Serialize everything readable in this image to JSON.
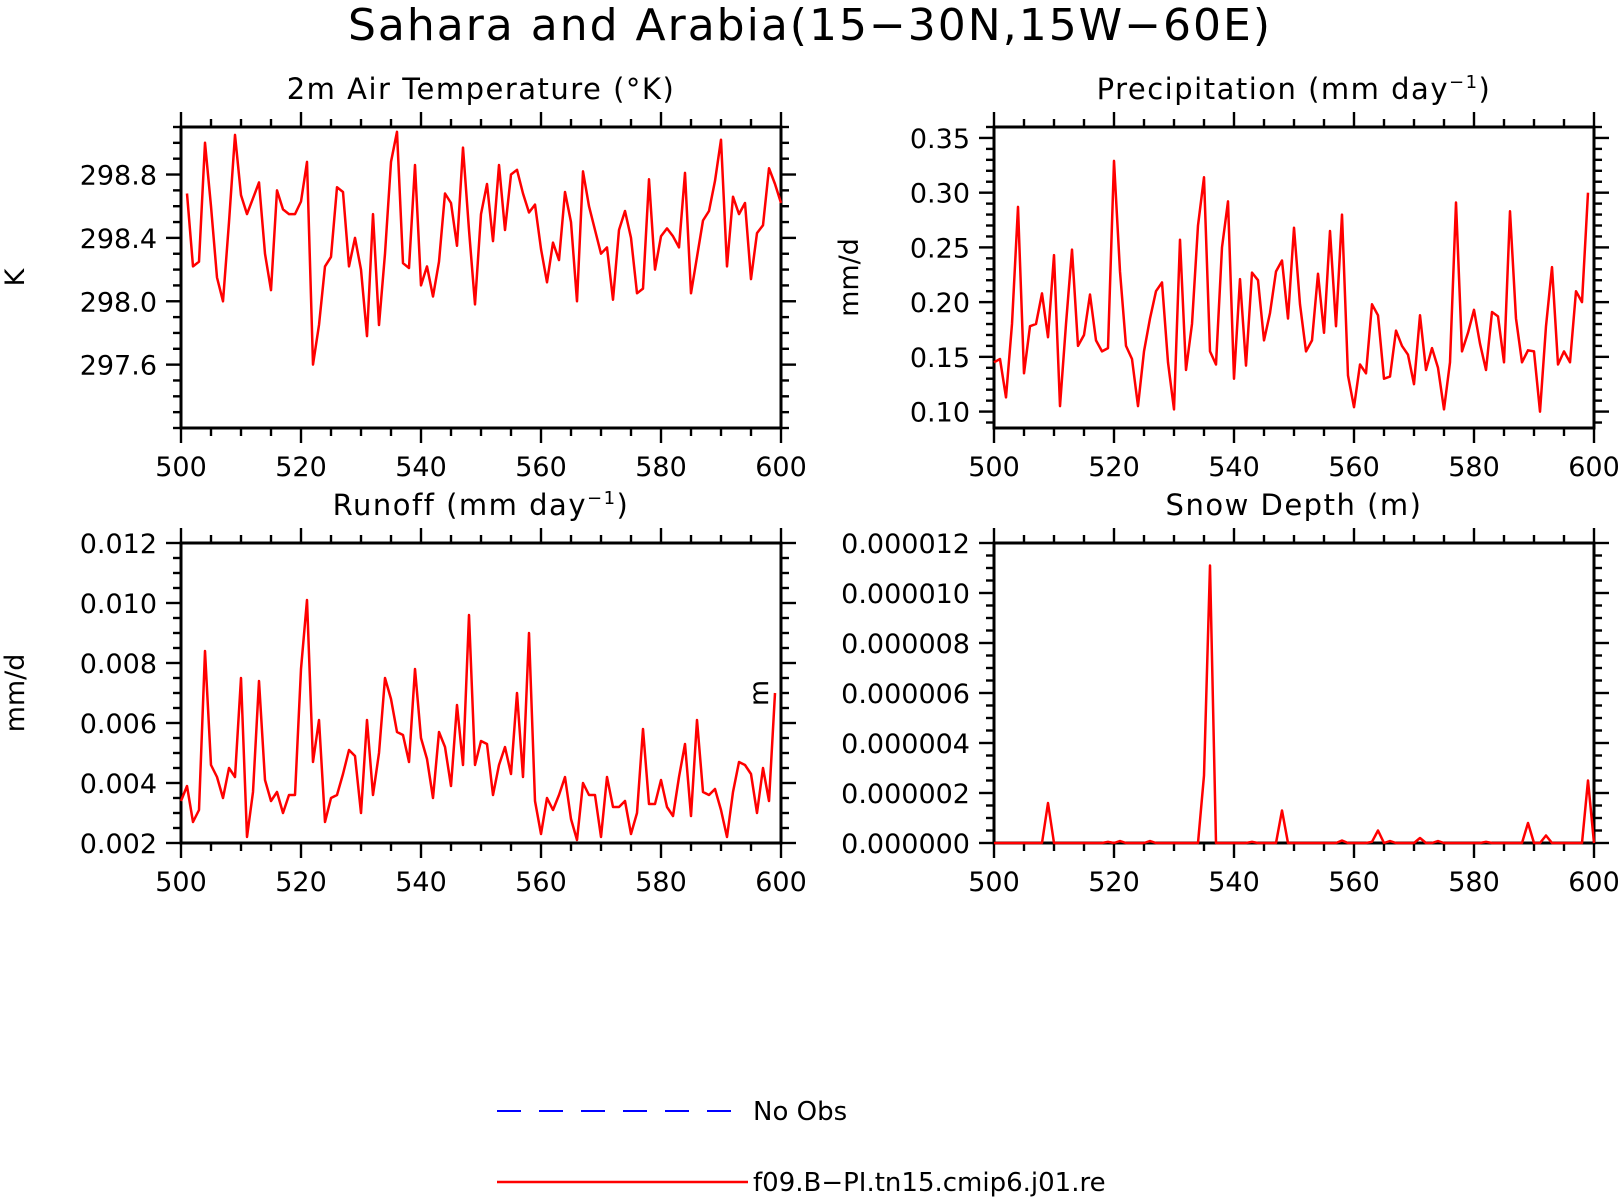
{
  "figure": {
    "title": "Sahara and Arabia(15−30N,15W−60E)"
  },
  "legend": {
    "items": [
      {
        "label": "No Obs",
        "color": "#0000ff",
        "dash": "dashed"
      },
      {
        "label": "f09.B−PI.tn15.cmip6.j01.re",
        "color": "#ff0000",
        "dash": "solid"
      }
    ]
  },
  "chart_data": [
    {
      "type": "line",
      "title": "2m Air Temperature (°K)",
      "xlabel": "",
      "ylabel": "K",
      "xlim": [
        500,
        600
      ],
      "ylim": [
        297.2,
        299.1
      ],
      "xticks": [
        500,
        520,
        540,
        560,
        580,
        600
      ],
      "yticks": [
        297.6,
        298.0,
        298.4,
        298.8
      ],
      "ytick_labels": [
        "297.6",
        "298.0",
        "298.4",
        "298.8"
      ],
      "yminor": 0.1,
      "series": [
        {
          "name": "f09.B−PI.tn15.cmip6.j01.re",
          "color": "#ff0000",
          "x_start": 501,
          "x_step": 1,
          "values": [
            298.68,
            298.22,
            298.25,
            299.0,
            298.6,
            298.15,
            298.0,
            298.5,
            299.05,
            298.67,
            298.55,
            298.65,
            298.75,
            298.3,
            298.07,
            298.7,
            298.58,
            298.55,
            298.55,
            298.63,
            298.88,
            297.6,
            297.85,
            298.22,
            298.28,
            298.72,
            298.69,
            298.22,
            298.4,
            298.2,
            297.78,
            298.55,
            297.85,
            298.3,
            298.88,
            299.07,
            298.24,
            298.21,
            298.86,
            298.1,
            298.22,
            298.03,
            298.25,
            298.68,
            298.62,
            298.35,
            298.97,
            298.45,
            297.98,
            298.55,
            298.74,
            298.38,
            298.86,
            298.45,
            298.8,
            298.83,
            298.68,
            298.56,
            298.61,
            298.33,
            298.12,
            298.37,
            298.26,
            298.69,
            298.5,
            298.0,
            298.82,
            298.6,
            298.45,
            298.3,
            298.34,
            298.01,
            298.45,
            298.57,
            298.4,
            298.05,
            298.08,
            298.77,
            298.2,
            298.41,
            298.46,
            298.41,
            298.34,
            298.81,
            298.05,
            298.28,
            298.51,
            298.57,
            298.76,
            299.02,
            298.22,
            298.66,
            298.55,
            298.62,
            298.14,
            298.43,
            298.48,
            298.84,
            298.74,
            298.62
          ]
        }
      ]
    },
    {
      "type": "line",
      "title": "Precipitation (mm day",
      "title_superscript": "−1",
      "title_suffix": ")",
      "xlabel": "",
      "ylabel": "mm/d",
      "xlim": [
        500,
        600
      ],
      "ylim": [
        0.085,
        0.36
      ],
      "xticks": [
        500,
        520,
        540,
        560,
        580,
        600
      ],
      "yticks": [
        0.1,
        0.15,
        0.2,
        0.25,
        0.3,
        0.35
      ],
      "ytick_labels": [
        "0.10",
        "0.15",
        "0.20",
        "0.25",
        "0.30",
        "0.35"
      ],
      "yminor": 0.01,
      "series": [
        {
          "name": "f09.B−PI.tn15.cmip6.j01.re",
          "color": "#ff0000",
          "x_start": 500,
          "x_step": 1,
          "values": [
            0.145,
            0.148,
            0.113,
            0.18,
            0.287,
            0.135,
            0.178,
            0.18,
            0.208,
            0.168,
            0.243,
            0.105,
            0.18,
            0.248,
            0.16,
            0.17,
            0.207,
            0.165,
            0.155,
            0.158,
            0.329,
            0.228,
            0.16,
            0.148,
            0.105,
            0.155,
            0.185,
            0.21,
            0.218,
            0.145,
            0.102,
            0.257,
            0.138,
            0.18,
            0.27,
            0.314,
            0.155,
            0.143,
            0.25,
            0.292,
            0.13,
            0.221,
            0.142,
            0.227,
            0.22,
            0.165,
            0.19,
            0.228,
            0.238,
            0.185,
            0.268,
            0.198,
            0.155,
            0.165,
            0.226,
            0.172,
            0.265,
            0.178,
            0.28,
            0.133,
            0.104,
            0.143,
            0.135,
            0.198,
            0.188,
            0.13,
            0.132,
            0.174,
            0.16,
            0.152,
            0.125,
            0.188,
            0.138,
            0.158,
            0.14,
            0.102,
            0.145,
            0.291,
            0.155,
            0.172,
            0.193,
            0.162,
            0.138,
            0.191,
            0.187,
            0.145,
            0.283,
            0.185,
            0.145,
            0.156,
            0.155,
            0.1,
            0.178,
            0.232,
            0.143,
            0.155,
            0.145,
            0.21,
            0.2,
            0.3
          ]
        }
      ]
    },
    {
      "type": "line",
      "title": "Runoff (mm day",
      "title_superscript": "−1",
      "title_suffix": ")",
      "xlabel": "",
      "ylabel": "mm/d",
      "xlim": [
        500,
        600
      ],
      "ylim": [
        0.002,
        0.012
      ],
      "xticks": [
        500,
        520,
        540,
        560,
        580,
        600
      ],
      "yticks": [
        0.002,
        0.004,
        0.006,
        0.008,
        0.01,
        0.012
      ],
      "ytick_labels": [
        "0.002",
        "0.004",
        "0.006",
        "0.008",
        "0.010",
        "0.012"
      ],
      "yminor": 0.0005,
      "series": [
        {
          "name": "f09.B−PI.tn15.cmip6.j01.re",
          "color": "#ff0000",
          "x_start": 500,
          "x_step": 1,
          "values": [
            0.0034,
            0.0039,
            0.0027,
            0.0031,
            0.0084,
            0.0046,
            0.0042,
            0.0035,
            0.0045,
            0.0042,
            0.0075,
            0.0022,
            0.0037,
            0.0074,
            0.0041,
            0.0034,
            0.0037,
            0.003,
            0.0036,
            0.0036,
            0.0078,
            0.0101,
            0.0047,
            0.0061,
            0.0027,
            0.0035,
            0.0036,
            0.0043,
            0.0051,
            0.0049,
            0.003,
            0.0061,
            0.0036,
            0.005,
            0.0075,
            0.0068,
            0.0057,
            0.0056,
            0.0047,
            0.0078,
            0.0055,
            0.0048,
            0.0035,
            0.0057,
            0.0052,
            0.0039,
            0.0066,
            0.0046,
            0.0096,
            0.0046,
            0.0054,
            0.0053,
            0.0036,
            0.0046,
            0.0052,
            0.0043,
            0.007,
            0.0042,
            0.009,
            0.0034,
            0.0023,
            0.0035,
            0.0031,
            0.0036,
            0.0042,
            0.0028,
            0.0021,
            0.004,
            0.0036,
            0.0036,
            0.0022,
            0.0042,
            0.0032,
            0.0032,
            0.0034,
            0.0023,
            0.003,
            0.0058,
            0.0033,
            0.0033,
            0.0041,
            0.0032,
            0.0029,
            0.0042,
            0.0053,
            0.0029,
            0.0061,
            0.0037,
            0.0036,
            0.0038,
            0.0031,
            0.0022,
            0.0037,
            0.0047,
            0.0046,
            0.0043,
            0.003,
            0.0045,
            0.0034,
            0.007
          ]
        }
      ]
    },
    {
      "type": "line",
      "title": "Snow Depth (m)",
      "xlabel": "",
      "ylabel": "m",
      "xlim": [
        500,
        600
      ],
      "ylim": [
        0,
        1.2e-05
      ],
      "xticks": [
        500,
        520,
        540,
        560,
        580,
        600
      ],
      "yticks": [
        0,
        2e-06,
        4e-06,
        6e-06,
        8e-06,
        1e-05,
        1.2e-05
      ],
      "ytick_labels": [
        "0.000000",
        "0.000002",
        "0.000004",
        "0.000006",
        "0.000008",
        "0.000010",
        "0.000012"
      ],
      "yminor": 5e-07,
      "series": [
        {
          "name": "f09.B−PI.tn15.cmip6.j01.re",
          "color": "#ff0000",
          "x_start": 500,
          "x_step": 1,
          "values": [
            0,
            0,
            0,
            0,
            0,
            0,
            0,
            0,
            0,
            1.6e-06,
            0,
            0,
            0,
            0,
            0,
            0,
            0,
            0,
            0,
            5e-08,
            0,
            8e-08,
            0,
            0,
            0,
            0,
            8e-08,
            0,
            0,
            0,
            0,
            0,
            0,
            0,
            0,
            2.7e-06,
            1.11e-05,
            0,
            0,
            0,
            0,
            0,
            0,
            5e-08,
            0,
            0,
            0,
            0,
            1.3e-06,
            0,
            0,
            0,
            0,
            0,
            0,
            0,
            0,
            0,
            1e-07,
            0,
            0,
            0,
            0,
            5e-08,
            5e-07,
            0,
            8e-08,
            0,
            0,
            0,
            0,
            2e-07,
            0,
            0,
            8e-08,
            0,
            0,
            0,
            0,
            0,
            0,
            0,
            5e-08,
            0,
            0,
            0,
            0,
            0,
            0,
            8e-07,
            0,
            0,
            3e-07,
            0,
            0,
            0,
            0,
            0,
            0,
            2.5e-06,
            0
          ]
        }
      ]
    }
  ]
}
